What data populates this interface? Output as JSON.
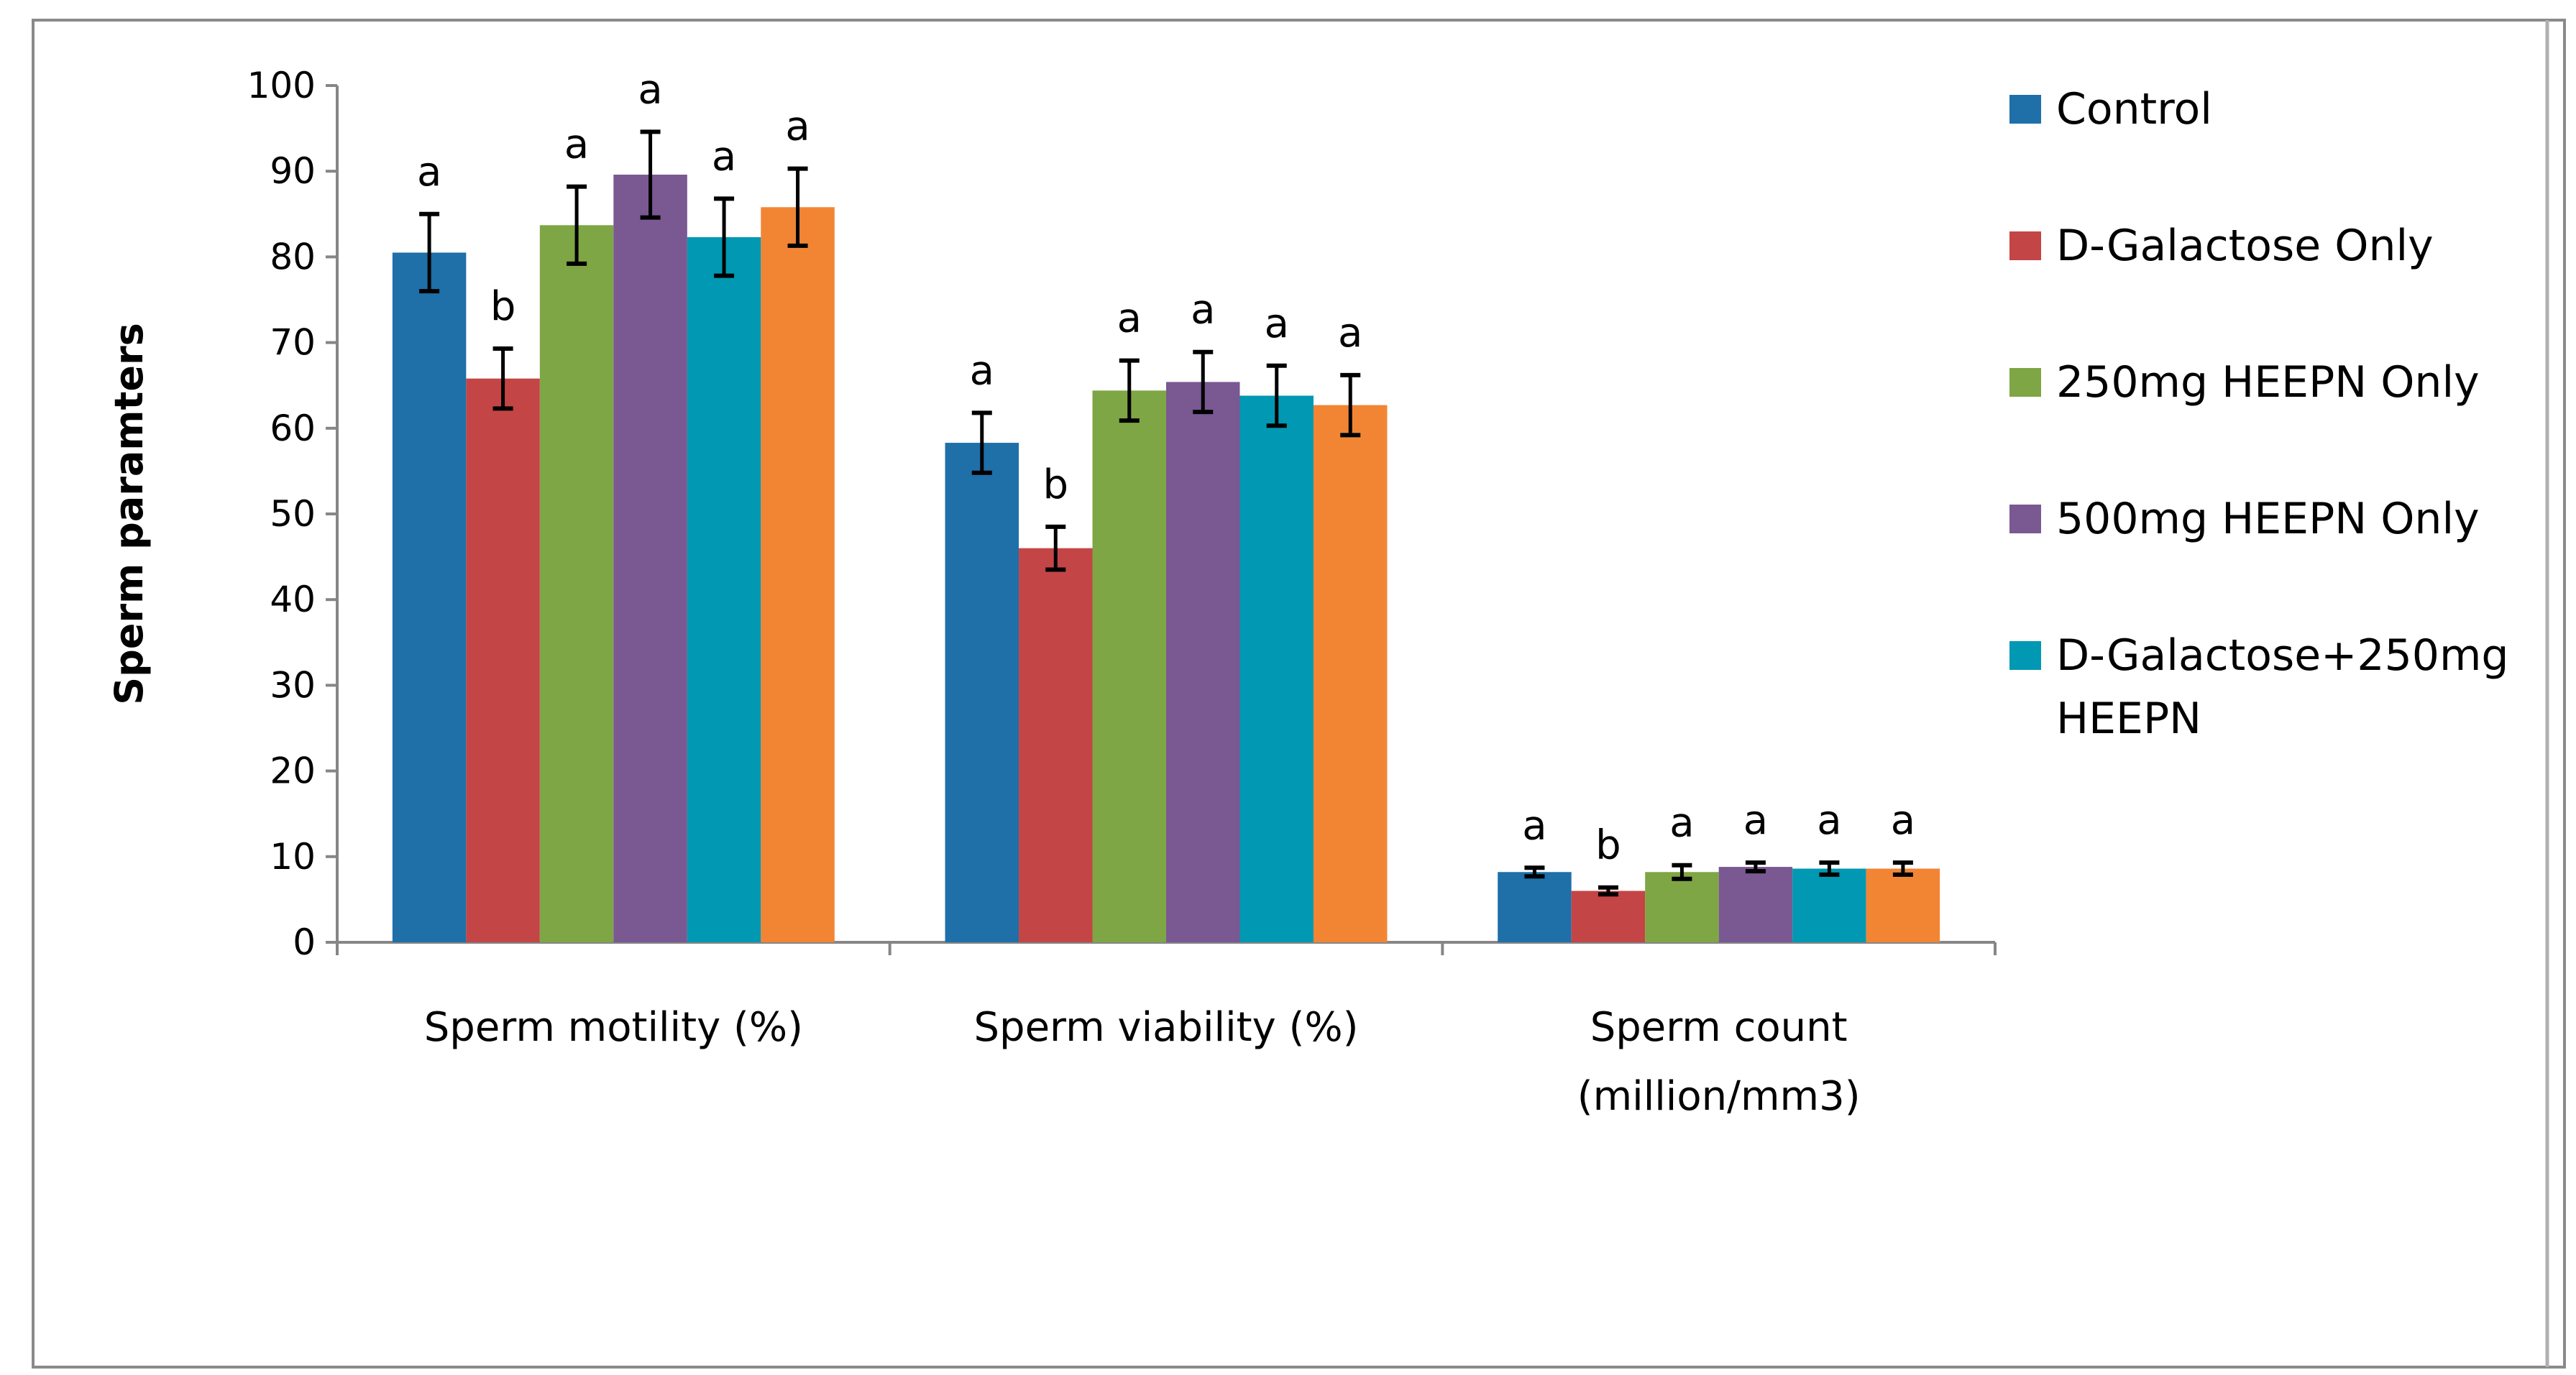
{
  "chart_data": {
    "type": "bar",
    "title": "",
    "xlabel": "",
    "ylabel": "Sperm paramters",
    "ylim": [
      0,
      100
    ],
    "yticks": [
      0,
      10,
      20,
      30,
      40,
      50,
      60,
      70,
      80,
      90,
      100
    ],
    "grid": false,
    "legend_position": "right",
    "categories": [
      [
        "Sperm motility (%)"
      ],
      [
        "Sperm viability (%)"
      ],
      [
        "Sperm count",
        "(million/mm3)"
      ]
    ],
    "series": [
      {
        "name": "Control",
        "color": "#1f6fa8",
        "values": [
          80.5,
          58.3,
          8.2
        ],
        "errors": [
          4.5,
          3.5,
          0.5
        ],
        "letters": [
          "a",
          "a",
          "a"
        ],
        "in_legend": true
      },
      {
        "name": "D-Galactose Only",
        "color": "#c44545",
        "values": [
          65.8,
          46.0,
          6.0
        ],
        "errors": [
          3.5,
          2.5,
          0.4
        ],
        "letters": [
          "b",
          "b",
          "b"
        ],
        "in_legend": true
      },
      {
        "name": "250mg HEEPN Only",
        "color": "#7ea644",
        "values": [
          83.7,
          64.4,
          8.2
        ],
        "errors": [
          4.5,
          3.5,
          0.8
        ],
        "letters": [
          "a",
          "a",
          "a"
        ],
        "in_legend": true
      },
      {
        "name": "500mg HEEPN Only",
        "color": "#7a5892",
        "values": [
          89.6,
          65.4,
          8.8
        ],
        "errors": [
          5.0,
          3.5,
          0.5
        ],
        "letters": [
          "a",
          "a",
          "a"
        ],
        "in_legend": true
      },
      {
        "name": "D-Galactose+250mg HEEPN",
        "legend_lines": [
          "D-Galactose+250mg",
          "HEEPN"
        ],
        "color": "#0098b2",
        "values": [
          82.3,
          63.8,
          8.6
        ],
        "errors": [
          4.5,
          3.5,
          0.7
        ],
        "letters": [
          "a",
          "a",
          "a"
        ],
        "in_legend": true
      },
      {
        "name": "",
        "color": "#f28534",
        "values": [
          85.8,
          62.7,
          8.6
        ],
        "errors": [
          4.5,
          3.5,
          0.7
        ],
        "letters": [
          "a",
          "a",
          "a"
        ],
        "in_legend": false
      }
    ]
  }
}
